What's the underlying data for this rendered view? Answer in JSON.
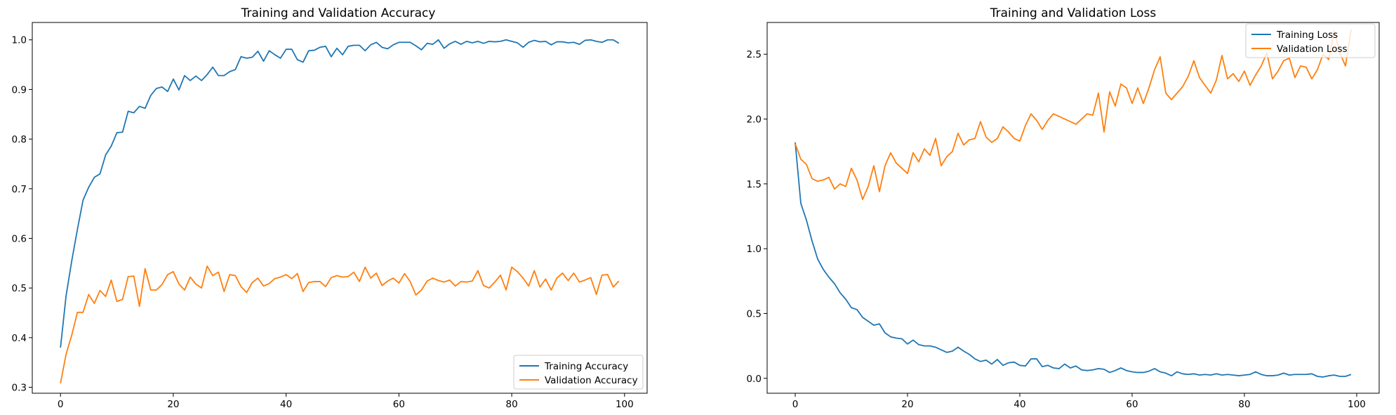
{
  "colors": {
    "training": "#1f77b4",
    "validation": "#ff7f0e"
  },
  "chart_data": [
    {
      "type": "line",
      "title": "Training and Validation Accuracy",
      "xlabel": "",
      "ylabel": "",
      "xlim": [
        -5,
        104
      ],
      "ylim": [
        0.288,
        1.035
      ],
      "xticks": [
        0,
        20,
        40,
        60,
        80,
        100
      ],
      "yticks": [
        0.3,
        0.4,
        0.5,
        0.6,
        0.7,
        0.8,
        0.9,
        1.0
      ],
      "ytick_labels": [
        "0.3",
        "0.4",
        "0.5",
        "0.6",
        "0.7",
        "0.8",
        "0.9",
        "1.0"
      ],
      "grid": false,
      "legend_position": "lower-right",
      "series": [
        {
          "name": "Training Accuracy",
          "color": "#1f77b4",
          "values": [
            0.38,
            0.485,
            0.555,
            0.618,
            0.677,
            0.703,
            0.723,
            0.73,
            0.768,
            0.786,
            0.813,
            0.814,
            0.856,
            0.853,
            0.866,
            0.862,
            0.888,
            0.902,
            0.905,
            0.896,
            0.921,
            0.899,
            0.928,
            0.918,
            0.927,
            0.918,
            0.93,
            0.945,
            0.928,
            0.928,
            0.936,
            0.94,
            0.966,
            0.963,
            0.965,
            0.977,
            0.957,
            0.978,
            0.97,
            0.963,
            0.981,
            0.981,
            0.96,
            0.955,
            0.978,
            0.979,
            0.985,
            0.987,
            0.966,
            0.983,
            0.97,
            0.987,
            0.989,
            0.989,
            0.978,
            0.99,
            0.995,
            0.985,
            0.982,
            0.99,
            0.995,
            0.995,
            0.995,
            0.988,
            0.98,
            0.993,
            0.991,
            1.0,
            0.983,
            0.992,
            0.997,
            0.991,
            0.997,
            0.994,
            0.997,
            0.993,
            0.997,
            0.996,
            0.997,
            1.0,
            0.997,
            0.994,
            0.985,
            0.995,
            0.999,
            0.996,
            0.997,
            0.99,
            0.996,
            0.996,
            0.994,
            0.995,
            0.991,
            0.999,
            1.0,
            0.997,
            0.995,
            1.0,
            1.0,
            0.993
          ]
        },
        {
          "name": "Validation Accuracy",
          "color": "#ff7f0e",
          "values": [
            0.308,
            0.367,
            0.405,
            0.451,
            0.451,
            0.487,
            0.469,
            0.495,
            0.483,
            0.516,
            0.473,
            0.477,
            0.523,
            0.524,
            0.463,
            0.539,
            0.496,
            0.496,
            0.507,
            0.527,
            0.533,
            0.508,
            0.496,
            0.522,
            0.508,
            0.5,
            0.544,
            0.525,
            0.532,
            0.493,
            0.527,
            0.525,
            0.503,
            0.491,
            0.511,
            0.52,
            0.504,
            0.509,
            0.519,
            0.522,
            0.527,
            0.519,
            0.529,
            0.493,
            0.511,
            0.513,
            0.513,
            0.503,
            0.521,
            0.525,
            0.522,
            0.523,
            0.532,
            0.513,
            0.542,
            0.52,
            0.53,
            0.505,
            0.514,
            0.52,
            0.51,
            0.529,
            0.513,
            0.486,
            0.496,
            0.514,
            0.52,
            0.515,
            0.512,
            0.516,
            0.504,
            0.513,
            0.512,
            0.514,
            0.535,
            0.505,
            0.5,
            0.512,
            0.526,
            0.496,
            0.542,
            0.533,
            0.52,
            0.504,
            0.535,
            0.502,
            0.518,
            0.496,
            0.52,
            0.53,
            0.515,
            0.53,
            0.512,
            0.516,
            0.521,
            0.487,
            0.526,
            0.527,
            0.502,
            0.514
          ]
        }
      ]
    },
    {
      "type": "line",
      "title": "Training and Validation Loss",
      "xlabel": "",
      "ylabel": "",
      "xlim": [
        -5,
        104
      ],
      "ylim": [
        -0.115,
        2.745
      ],
      "xticks": [
        0,
        20,
        40,
        60,
        80,
        100
      ],
      "yticks": [
        0.0,
        0.5,
        1.0,
        1.5,
        2.0,
        2.5
      ],
      "ytick_labels": [
        "0.0",
        "0.5",
        "1.0",
        "1.5",
        "2.0",
        "2.5"
      ],
      "grid": false,
      "legend_position": "upper-right",
      "series": [
        {
          "name": "Training Loss",
          "color": "#1f77b4",
          "values": [
            1.82,
            1.35,
            1.22,
            1.06,
            0.92,
            0.84,
            0.78,
            0.73,
            0.66,
            0.61,
            0.545,
            0.53,
            0.47,
            0.44,
            0.41,
            0.42,
            0.35,
            0.32,
            0.31,
            0.305,
            0.265,
            0.295,
            0.26,
            0.25,
            0.25,
            0.24,
            0.22,
            0.2,
            0.21,
            0.24,
            0.21,
            0.185,
            0.15,
            0.13,
            0.14,
            0.11,
            0.145,
            0.1,
            0.12,
            0.125,
            0.1,
            0.095,
            0.15,
            0.15,
            0.09,
            0.1,
            0.08,
            0.075,
            0.11,
            0.08,
            0.095,
            0.065,
            0.06,
            0.065,
            0.075,
            0.07,
            0.045,
            0.06,
            0.08,
            0.06,
            0.05,
            0.045,
            0.045,
            0.055,
            0.075,
            0.05,
            0.04,
            0.02,
            0.05,
            0.035,
            0.03,
            0.035,
            0.025,
            0.03,
            0.025,
            0.035,
            0.025,
            0.03,
            0.025,
            0.02,
            0.025,
            0.03,
            0.05,
            0.03,
            0.02,
            0.02,
            0.025,
            0.04,
            0.025,
            0.03,
            0.03,
            0.03,
            0.035,
            0.015,
            0.01,
            0.02,
            0.025,
            0.015,
            0.015,
            0.03
          ]
        },
        {
          "name": "Validation Loss",
          "color": "#ff7f0e",
          "values": [
            1.81,
            1.69,
            1.65,
            1.54,
            1.52,
            1.53,
            1.55,
            1.46,
            1.5,
            1.48,
            1.62,
            1.53,
            1.38,
            1.48,
            1.64,
            1.44,
            1.64,
            1.74,
            1.66,
            1.62,
            1.58,
            1.74,
            1.67,
            1.77,
            1.72,
            1.85,
            1.64,
            1.71,
            1.75,
            1.89,
            1.8,
            1.84,
            1.85,
            1.98,
            1.86,
            1.82,
            1.85,
            1.94,
            1.9,
            1.85,
            1.83,
            1.95,
            2.04,
            1.99,
            1.92,
            1.99,
            2.04,
            2.02,
            2.0,
            1.98,
            1.96,
            2.0,
            2.04,
            2.03,
            2.2,
            1.9,
            2.21,
            2.1,
            2.27,
            2.24,
            2.12,
            2.24,
            2.12,
            2.24,
            2.38,
            2.48,
            2.2,
            2.15,
            2.2,
            2.25,
            2.33,
            2.45,
            2.32,
            2.26,
            2.2,
            2.3,
            2.49,
            2.31,
            2.35,
            2.29,
            2.37,
            2.26,
            2.34,
            2.41,
            2.51,
            2.31,
            2.37,
            2.45,
            2.47,
            2.32,
            2.41,
            2.4,
            2.31,
            2.38,
            2.5,
            2.46,
            2.68,
            2.51,
            2.41,
            2.69
          ]
        }
      ]
    }
  ]
}
